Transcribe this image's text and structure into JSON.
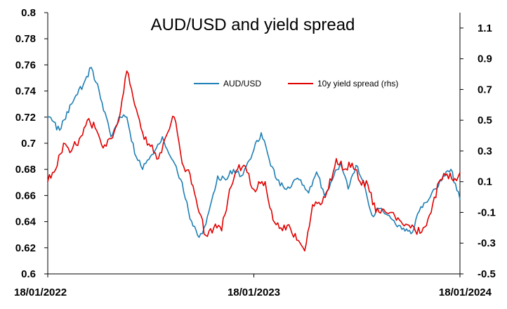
{
  "chart_data": {
    "type": "line",
    "title": "AUD/USD and yield spread",
    "x_ticks": [
      "18/01/2022",
      "18/01/2023",
      "18/01/2024"
    ],
    "y_left": {
      "ticks": [
        "0.6",
        "0.62",
        "0.64",
        "0.66",
        "0.68",
        "0.7",
        "0.72",
        "0.74",
        "0.76",
        "0.78",
        "0.8"
      ],
      "lim": [
        0.6,
        0.8
      ]
    },
    "y_right": {
      "ticks": [
        "-0.5",
        "-0.3",
        "-0.1",
        "0.1",
        "0.3",
        "0.5",
        "0.7",
        "0.9",
        "1.1"
      ],
      "lim": [
        -0.5,
        1.2
      ]
    },
    "legend_position": "upper-middle",
    "grid": false,
    "series": [
      {
        "name": "AUD/USD",
        "axis": "left",
        "color": "#1f7fb4",
        "x": [
          "2022-01-18",
          "2022-02-08",
          "2022-03-01",
          "2022-03-22",
          "2022-04-05",
          "2022-04-19",
          "2022-05-10",
          "2022-05-24",
          "2022-06-07",
          "2022-06-21",
          "2022-07-05",
          "2022-07-19",
          "2022-08-09",
          "2022-08-23",
          "2022-09-13",
          "2022-09-27",
          "2022-10-13",
          "2022-10-25",
          "2022-11-15",
          "2022-11-29",
          "2022-12-13",
          "2022-12-27",
          "2023-01-18",
          "2023-01-31",
          "2023-02-14",
          "2023-02-28",
          "2023-03-14",
          "2023-03-28",
          "2023-04-11",
          "2023-04-25",
          "2023-05-09",
          "2023-05-23",
          "2023-06-06",
          "2023-06-20",
          "2023-07-04",
          "2023-07-18",
          "2023-08-01",
          "2023-08-15",
          "2023-08-29",
          "2023-09-12",
          "2023-09-26",
          "2023-10-10",
          "2023-10-26",
          "2023-11-07",
          "2023-11-21",
          "2023-12-05",
          "2023-12-19",
          "2024-01-02",
          "2024-01-18"
        ],
        "values": [
          0.72,
          0.71,
          0.73,
          0.745,
          0.758,
          0.74,
          0.705,
          0.72,
          0.72,
          0.692,
          0.68,
          0.69,
          0.705,
          0.69,
          0.67,
          0.642,
          0.628,
          0.638,
          0.675,
          0.672,
          0.68,
          0.675,
          0.695,
          0.708,
          0.688,
          0.672,
          0.665,
          0.67,
          0.672,
          0.662,
          0.678,
          0.66,
          0.672,
          0.685,
          0.665,
          0.683,
          0.67,
          0.645,
          0.65,
          0.645,
          0.638,
          0.635,
          0.632,
          0.648,
          0.655,
          0.665,
          0.675,
          0.68,
          0.657
        ]
      },
      {
        "name": "10y yield spread (rhs)",
        "axis": "right",
        "color": "#e00000",
        "x": [
          "2022-01-18",
          "2022-02-01",
          "2022-02-15",
          "2022-03-01",
          "2022-03-15",
          "2022-03-29",
          "2022-04-12",
          "2022-04-26",
          "2022-05-10",
          "2022-05-24",
          "2022-06-07",
          "2022-06-21",
          "2022-07-05",
          "2022-07-19",
          "2022-08-02",
          "2022-08-16",
          "2022-08-30",
          "2022-09-13",
          "2022-09-27",
          "2022-10-13",
          "2022-10-25",
          "2022-11-08",
          "2022-11-22",
          "2022-12-06",
          "2022-12-20",
          "2023-01-03",
          "2023-01-18",
          "2023-02-07",
          "2023-02-21",
          "2023-03-07",
          "2023-03-21",
          "2023-04-04",
          "2023-04-18",
          "2023-05-02",
          "2023-05-16",
          "2023-05-30",
          "2023-06-13",
          "2023-06-27",
          "2023-07-11",
          "2023-07-25",
          "2023-08-08",
          "2023-08-22",
          "2023-09-05",
          "2023-09-19",
          "2023-10-03",
          "2023-10-17",
          "2023-10-31",
          "2023-11-14",
          "2023-11-28",
          "2023-12-12",
          "2023-12-26",
          "2024-01-09",
          "2024-01-18"
        ],
        "values": [
          0.1,
          0.18,
          0.35,
          0.3,
          0.38,
          0.5,
          0.45,
          0.32,
          0.38,
          0.5,
          0.82,
          0.6,
          0.42,
          0.33,
          0.25,
          0.4,
          0.52,
          0.22,
          0.15,
          -0.1,
          -0.25,
          -0.2,
          -0.22,
          0.05,
          0.18,
          0.2,
          0.05,
          0.1,
          -0.15,
          -0.2,
          -0.18,
          -0.28,
          -0.35,
          -0.05,
          -0.05,
          0.05,
          0.25,
          0.18,
          0.22,
          0.1,
          0.08,
          -0.1,
          -0.08,
          -0.1,
          -0.15,
          -0.18,
          -0.22,
          -0.2,
          -0.1,
          0.1,
          0.15,
          0.12,
          0.16
        ]
      }
    ]
  }
}
